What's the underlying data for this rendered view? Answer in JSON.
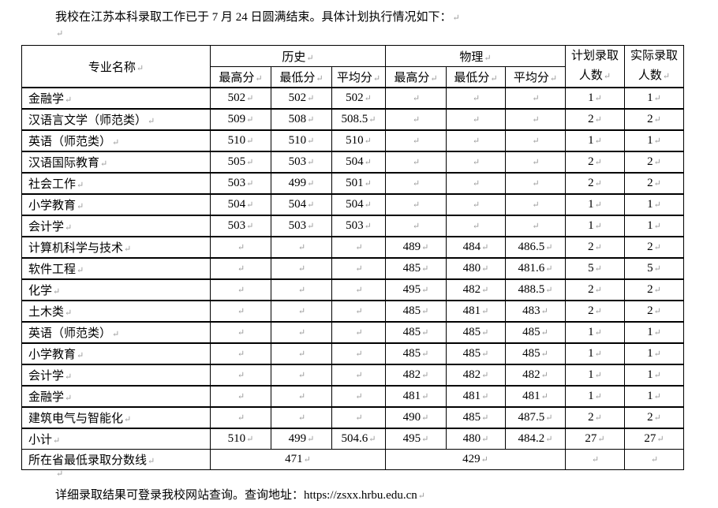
{
  "intro": "我校在江苏本科录取工作已于 7 月 24 日圆满结束。具体计划执行情况如下：",
  "outro": "详细录取结果可登录我校网站查询。查询地址：https://zsxx.hrbu.edu.cn",
  "paragraph_mark": "↵",
  "table": {
    "header": {
      "major": "专业名称",
      "history": "历史",
      "physics": "物理",
      "plan": "计划录取人数",
      "actual": "实际录取人数",
      "max": "最高分",
      "min": "最低分",
      "avg": "平均分"
    },
    "rows": [
      {
        "name": "金融学",
        "h": [
          "502",
          "502",
          "502"
        ],
        "p": [
          "",
          "",
          ""
        ],
        "plan": "1",
        "actual": "1"
      },
      {
        "name": "汉语言文学（师范类）",
        "h": [
          "509",
          "508",
          "508.5"
        ],
        "p": [
          "",
          "",
          ""
        ],
        "plan": "2",
        "actual": "2"
      },
      {
        "name": "英语（师范类）",
        "h": [
          "510",
          "510",
          "510"
        ],
        "p": [
          "",
          "",
          ""
        ],
        "plan": "1",
        "actual": "1"
      },
      {
        "name": "汉语国际教育",
        "h": [
          "505",
          "503",
          "504"
        ],
        "p": [
          "",
          "",
          ""
        ],
        "plan": "2",
        "actual": "2"
      },
      {
        "name": "社会工作",
        "h": [
          "503",
          "499",
          "501"
        ],
        "p": [
          "",
          "",
          ""
        ],
        "plan": "2",
        "actual": "2"
      },
      {
        "name": "小学教育",
        "h": [
          "504",
          "504",
          "504"
        ],
        "p": [
          "",
          "",
          ""
        ],
        "plan": "1",
        "actual": "1"
      },
      {
        "name": "会计学",
        "h": [
          "503",
          "503",
          "503"
        ],
        "p": [
          "",
          "",
          ""
        ],
        "plan": "1",
        "actual": "1"
      },
      {
        "name": "计算机科学与技术",
        "h": [
          "",
          "",
          ""
        ],
        "p": [
          "489",
          "484",
          "486.5"
        ],
        "plan": "2",
        "actual": "2"
      },
      {
        "name": "软件工程",
        "h": [
          "",
          "",
          ""
        ],
        "p": [
          "485",
          "480",
          "481.6"
        ],
        "plan": "5",
        "actual": "5"
      },
      {
        "name": "化学",
        "h": [
          "",
          "",
          ""
        ],
        "p": [
          "495",
          "482",
          "488.5"
        ],
        "plan": "2",
        "actual": "2"
      },
      {
        "name": "土木类",
        "h": [
          "",
          "",
          ""
        ],
        "p": [
          "485",
          "481",
          "483"
        ],
        "plan": "2",
        "actual": "2"
      },
      {
        "name": "英语（师范类）",
        "h": [
          "",
          "",
          ""
        ],
        "p": [
          "485",
          "485",
          "485"
        ],
        "plan": "1",
        "actual": "1"
      },
      {
        "name": "小学教育",
        "h": [
          "",
          "",
          ""
        ],
        "p": [
          "485",
          "485",
          "485"
        ],
        "plan": "1",
        "actual": "1"
      },
      {
        "name": "会计学",
        "h": [
          "",
          "",
          ""
        ],
        "p": [
          "482",
          "482",
          "482"
        ],
        "plan": "1",
        "actual": "1"
      },
      {
        "name": "金融学",
        "h": [
          "",
          "",
          ""
        ],
        "p": [
          "481",
          "481",
          "481"
        ],
        "plan": "1",
        "actual": "1"
      },
      {
        "name": "建筑电气与智能化",
        "h": [
          "",
          "",
          ""
        ],
        "p": [
          "490",
          "485",
          "487.5"
        ],
        "plan": "2",
        "actual": "2"
      },
      {
        "name": "小计",
        "h": [
          "510",
          "499",
          "504.6"
        ],
        "p": [
          "495",
          "480",
          "484.2"
        ],
        "plan": "27",
        "actual": "27"
      }
    ],
    "min_line": {
      "label": "所在省最低录取分数线",
      "history": "471",
      "physics": "429",
      "plan": "",
      "actual": ""
    }
  }
}
